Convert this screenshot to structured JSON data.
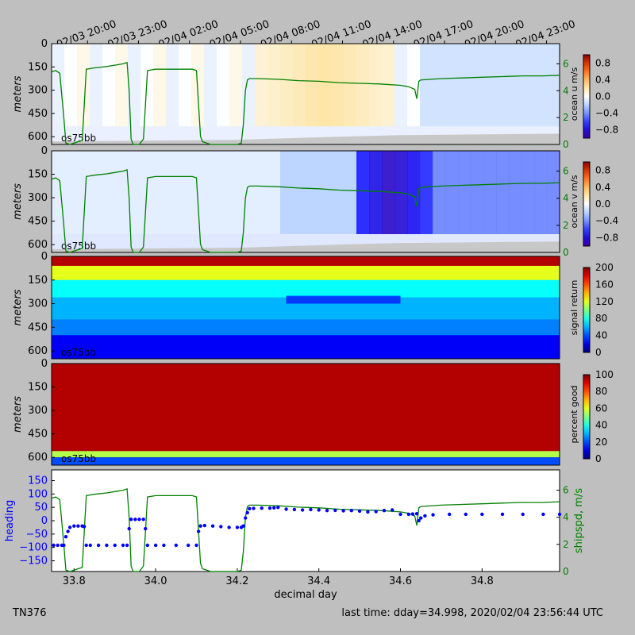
{
  "footer": {
    "cruise": "TN376",
    "last_time": "last time: dday=34.998,  2020/02/04 23:56:44 UTC"
  },
  "colors": {
    "figure_bg": "#bfbfbf",
    "ship_speed": "#008000",
    "heading": "#0000ff",
    "bad_data": "#c8c8c8"
  },
  "chart_data": [
    {
      "type": "heatmap",
      "name": "ocean-u",
      "instrument_label": "os75bb",
      "ylabel": "meters",
      "y_ticks": [
        0,
        150,
        300,
        450,
        600
      ],
      "depth_range": [
        0,
        650
      ],
      "colorbar": {
        "label": "ocean u m/s",
        "range": [
          -1,
          1
        ],
        "ticks": [
          "0.8",
          "0.4",
          "0.0",
          "−0.4",
          "−0.8"
        ],
        "colormap": "diverging-blue-red"
      },
      "right_axis": {
        "ticks": [
          "0",
          "2",
          "4",
          "6"
        ],
        "range": [
          0,
          7.5
        ],
        "color": "#008000"
      },
      "top_time_labels": [
        "02/03 20:00",
        "02/03 23:00",
        "02/04 02:00",
        "02/04 05:00",
        "02/04 08:00",
        "02/04 11:00",
        "02/04 14:00",
        "02/04 17:00",
        "02/04 20:00",
        "02/04 23:00"
      ],
      "top_time_positions": [
        33.833,
        33.958,
        34.083,
        34.208,
        34.333,
        34.458,
        34.583,
        34.708,
        34.833,
        34.958
      ]
    },
    {
      "type": "heatmap",
      "name": "ocean-v",
      "instrument_label": "os75bb",
      "ylabel": "meters",
      "y_ticks": [
        0,
        150,
        300,
        450,
        600
      ],
      "depth_range": [
        0,
        650
      ],
      "colorbar": {
        "label": "ocean v m/s",
        "range": [
          -1,
          1
        ],
        "ticks": [
          "0.8",
          "0.4",
          "0.0",
          "−0.4",
          "−0.8"
        ],
        "colormap": "diverging-blue-red"
      },
      "right_axis": {
        "ticks": [
          "0",
          "2",
          "4",
          "6"
        ],
        "range": [
          0,
          7.5
        ],
        "color": "#008000"
      }
    },
    {
      "type": "heatmap",
      "name": "signal-return",
      "instrument_label": "os75bb",
      "ylabel": "meters",
      "y_ticks": [
        0,
        150,
        300,
        450,
        600
      ],
      "depth_range": [
        0,
        650
      ],
      "colorbar": {
        "label": "signal return",
        "range": [
          0,
          200
        ],
        "ticks": [
          "200",
          "160",
          "120",
          "80",
          "40",
          "0"
        ],
        "colormap": "jet"
      }
    },
    {
      "type": "heatmap",
      "name": "percent-good",
      "instrument_label": "os75bb",
      "ylabel": "meters",
      "y_ticks": [
        0,
        150,
        300,
        450,
        600
      ],
      "depth_range": [
        0,
        650
      ],
      "colorbar": {
        "label": "percent good",
        "range": [
          0,
          100
        ],
        "ticks": [
          "100",
          "80",
          "60",
          "40",
          "20",
          "0"
        ],
        "colormap": "jet"
      }
    },
    {
      "type": "line",
      "name": "heading-shipspeed",
      "xlabel": "decimal day",
      "x_range": [
        33.745,
        34.99
      ],
      "x_ticks": [
        33.8,
        34.0,
        34.2,
        34.4,
        34.6,
        34.8
      ],
      "x_tick_labels": [
        "33.8",
        "34.0",
        "34.2",
        "34.4",
        "34.6",
        "34.8"
      ],
      "ylabel_left": "heading",
      "y_left_range": [
        -190,
        190
      ],
      "y_left_ticks": [
        "150",
        "100",
        "50",
        "0",
        "−50",
        "−100",
        "−150"
      ],
      "ylabel_right": "shipspd, m/s",
      "y_right_range": [
        0,
        7.5
      ],
      "y_right_ticks": [
        "6",
        "4",
        "2",
        "0"
      ],
      "ship_speed": {
        "x": [
          33.745,
          33.755,
          33.765,
          33.775,
          33.78,
          33.79,
          33.8,
          33.82,
          33.83,
          33.85,
          33.88,
          33.9,
          33.92,
          33.93,
          33.935,
          33.94,
          33.945,
          33.955,
          33.96,
          33.97,
          33.98,
          34.0,
          34.03,
          34.06,
          34.09,
          34.1,
          34.105,
          34.11,
          34.115,
          34.125,
          34.135,
          34.15,
          34.2,
          34.21,
          34.215,
          34.22,
          34.225,
          34.23,
          34.25,
          34.3,
          34.35,
          34.4,
          34.45,
          34.5,
          34.55,
          34.6,
          34.62,
          34.635,
          34.64,
          34.645,
          34.65,
          34.7,
          34.75,
          34.8,
          34.85,
          34.9,
          34.95,
          34.99
        ],
        "y": [
          5.4,
          5.5,
          5.3,
          2.0,
          0.1,
          0.0,
          0.1,
          0.3,
          5.6,
          5.7,
          5.8,
          5.9,
          6.0,
          6.1,
          4.0,
          0.4,
          0.0,
          0.0,
          0.0,
          0.4,
          5.5,
          5.6,
          5.6,
          5.6,
          5.6,
          5.5,
          3.0,
          0.6,
          0.2,
          0.1,
          0.0,
          0.0,
          0.0,
          0.1,
          1.5,
          4.0,
          4.8,
          4.9,
          4.9,
          4.85,
          4.75,
          4.7,
          4.6,
          4.55,
          4.5,
          4.4,
          4.3,
          4.1,
          3.4,
          4.7,
          4.8,
          4.9,
          4.95,
          5.0,
          5.05,
          5.1,
          5.1,
          5.15
        ]
      },
      "heading": {
        "x": [
          33.75,
          33.76,
          33.77,
          33.775,
          33.78,
          33.785,
          33.79,
          33.8,
          33.81,
          33.82,
          33.825,
          33.83,
          33.84,
          33.86,
          33.88,
          33.9,
          33.92,
          33.93,
          33.935,
          33.94,
          33.95,
          33.96,
          33.97,
          33.975,
          33.98,
          34.0,
          34.02,
          34.05,
          34.08,
          34.1,
          34.105,
          34.11,
          34.12,
          34.14,
          34.16,
          34.18,
          34.2,
          34.21,
          34.215,
          34.22,
          34.225,
          34.23,
          34.24,
          34.26,
          34.28,
          34.29,
          34.3,
          34.32,
          34.34,
          34.36,
          34.38,
          34.4,
          34.42,
          34.44,
          34.46,
          34.48,
          34.5,
          34.52,
          34.54,
          34.56,
          34.58,
          34.6,
          34.62,
          34.63,
          34.64,
          34.645,
          34.65,
          34.66,
          34.68,
          34.72,
          34.76,
          34.8,
          34.85,
          34.9,
          34.95,
          34.99
        ],
        "y": [
          -92,
          -92,
          -92,
          -92,
          -60,
          -40,
          -25,
          -20,
          -20,
          -20,
          -22,
          -92,
          -92,
          -92,
          -92,
          -92,
          -92,
          -92,
          -30,
          5,
          5,
          5,
          5,
          -30,
          -92,
          -92,
          -92,
          -92,
          -92,
          -92,
          -40,
          -20,
          -18,
          -20,
          -22,
          -25,
          -25,
          -25,
          -20,
          10,
          30,
          45,
          46,
          47,
          47,
          48,
          50,
          43,
          42,
          40,
          42,
          40,
          38,
          39,
          37,
          38,
          36,
          33,
          34,
          38,
          40,
          24,
          24,
          25,
          26,
          0,
          10,
          18,
          22,
          24,
          24,
          24,
          24,
          24,
          24,
          24
        ]
      }
    }
  ]
}
